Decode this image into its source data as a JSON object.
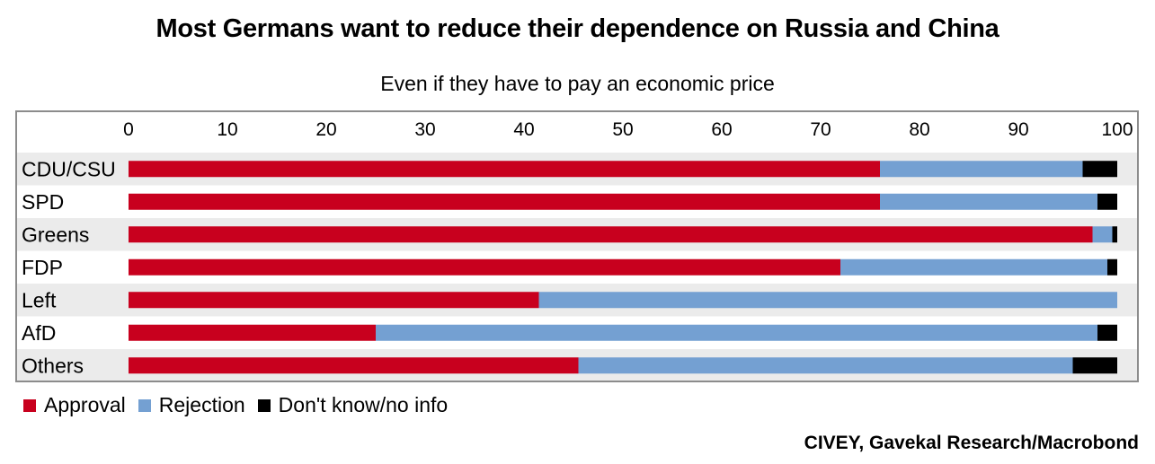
{
  "title": "Most Germans want to reduce their dependence on Russia and China",
  "subtitle": "Even if they have to pay an economic price",
  "source": "CIVEY, Gavekal Research/Macrobond",
  "colors": {
    "approval": "#c8001e",
    "rejection": "#74a0d2",
    "dontknow": "#000000",
    "band": "#ebebeb",
    "frame": "#8c8c8c"
  },
  "chart_data": {
    "type": "bar",
    "orientation": "horizontal",
    "stacked": true,
    "title": "Most Germans want to reduce their dependence on Russia and China",
    "subtitle": "Even if they have to pay an economic price",
    "xlim": [
      0,
      100
    ],
    "xticks": [
      0,
      10,
      20,
      30,
      40,
      50,
      60,
      70,
      80,
      90,
      100
    ],
    "xlabel": "",
    "ylabel": "",
    "categories": [
      "CDU/CSU",
      "SPD",
      "Greens",
      "FDP",
      "Left",
      "AfD",
      "Others"
    ],
    "series": [
      {
        "name": "Approval",
        "key": "approval",
        "values": [
          76,
          76,
          97.5,
          72,
          41.5,
          25,
          45.5
        ]
      },
      {
        "name": "Rejection",
        "key": "rejection",
        "values": [
          20.5,
          22,
          2,
          27,
          58.5,
          73,
          50
        ]
      },
      {
        "name": "Don't know/no info",
        "key": "dontknow",
        "values": [
          3.5,
          2,
          0.5,
          1,
          0,
          2,
          4.5
        ]
      }
    ],
    "legend_position": "bottom-left"
  }
}
